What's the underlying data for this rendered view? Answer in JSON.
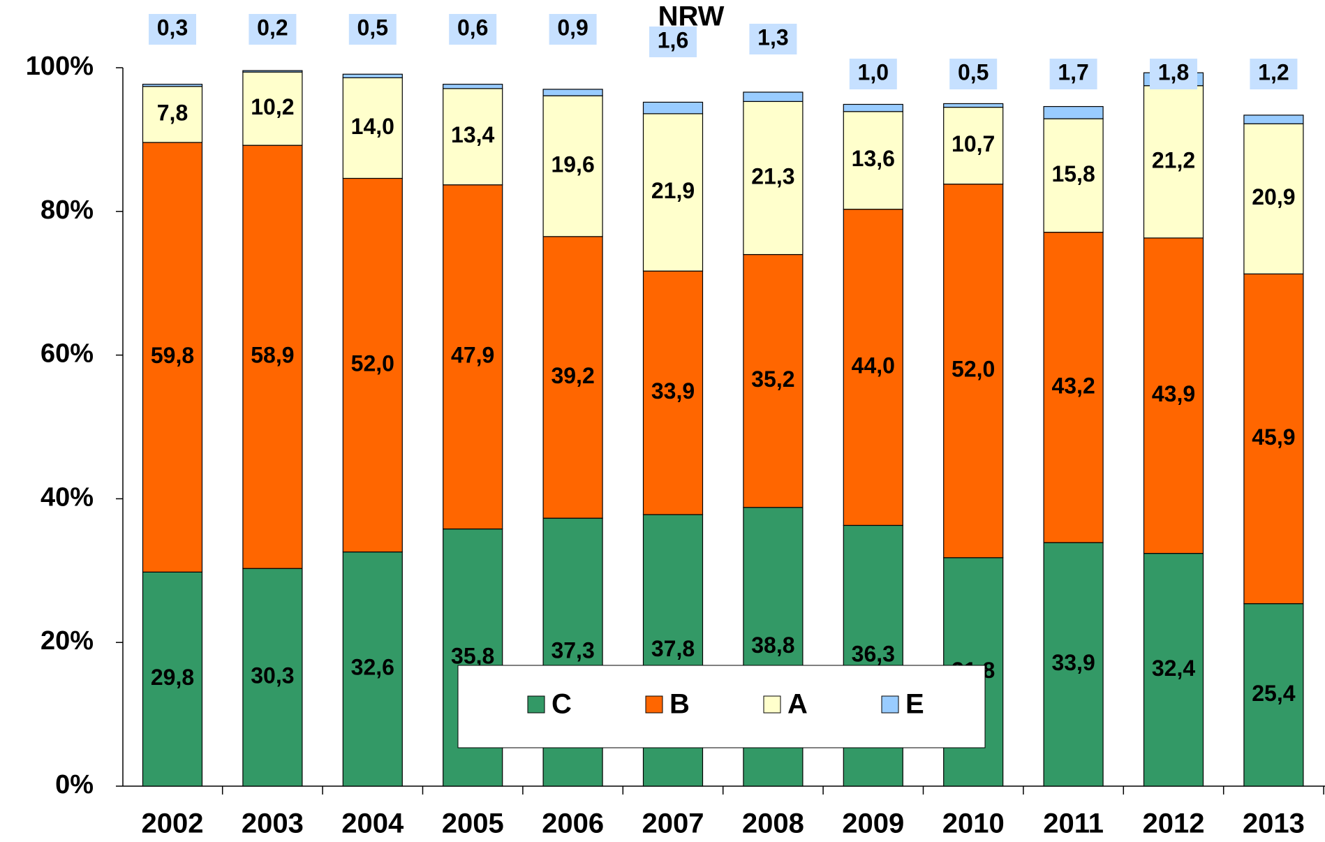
{
  "chart_data": {
    "type": "stacked_bar",
    "title": "NRW",
    "categories": [
      "2002",
      "2003",
      "2004",
      "2005",
      "2006",
      "2007",
      "2008",
      "2009",
      "2010",
      "2011",
      "2012",
      "2013"
    ],
    "series": [
      {
        "name": "C",
        "color": "#339966",
        "values": [
          29.8,
          30.3,
          32.6,
          35.8,
          37.3,
          37.8,
          38.8,
          36.3,
          31.8,
          33.9,
          32.4,
          25.4
        ],
        "value_labels": [
          "29,8",
          "30,3",
          "32,6",
          "35,8",
          "37,3",
          "37,8",
          "38,8",
          "36,3",
          "31,8",
          "33,9",
          "32,4",
          "25,4"
        ]
      },
      {
        "name": "B",
        "color": "#ff6600",
        "values": [
          59.8,
          58.9,
          52.0,
          47.9,
          39.2,
          33.9,
          35.2,
          44.0,
          52.0,
          43.2,
          43.9,
          45.9
        ],
        "value_labels": [
          "59,8",
          "58,9",
          "52,0",
          "47,9",
          "39,2",
          "33,9",
          "35,2",
          "44,0",
          "52,0",
          "43,2",
          "43,9",
          "45,9"
        ]
      },
      {
        "name": "A",
        "color": "#ffffcc",
        "values": [
          7.8,
          10.2,
          14.0,
          13.4,
          19.6,
          21.9,
          21.3,
          13.6,
          10.7,
          15.8,
          21.2,
          20.9
        ],
        "value_labels": [
          "7,8",
          "10,2",
          "14,0",
          "13,4",
          "19,6",
          "21,9",
          "21,3",
          "13,6",
          "10,7",
          "15,8",
          "21,2",
          "20,9"
        ]
      },
      {
        "name": "E",
        "color": "#99ccff",
        "values": [
          0.3,
          0.2,
          0.5,
          0.6,
          0.9,
          1.6,
          1.3,
          1.0,
          0.5,
          1.7,
          1.8,
          1.2
        ],
        "value_labels": [
          "0,3",
          "0,2",
          "0,5",
          "0,6",
          "0,9",
          "1,6",
          "1,3",
          "1,0",
          "0,5",
          "1,7",
          "1,8",
          "1,2"
        ]
      }
    ],
    "ylim": [
      0,
      100
    ],
    "yticks": [
      {
        "value": 0,
        "label": "0%"
      },
      {
        "value": 20,
        "label": "20%"
      },
      {
        "value": 40,
        "label": "40%"
      },
      {
        "value": 60,
        "label": "60%"
      },
      {
        "value": 80,
        "label": "80%"
      },
      {
        "value": 100,
        "label": "100%"
      }
    ],
    "legend": "bottom"
  }
}
